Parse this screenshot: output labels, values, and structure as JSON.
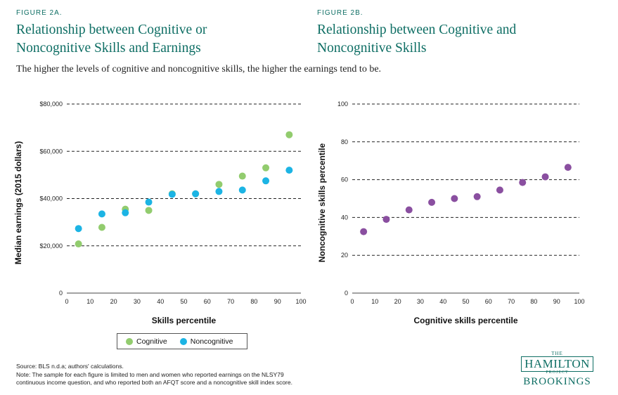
{
  "figure_a": {
    "label": "FIGURE 2A.",
    "title_line1": "Relationship between Cognitive or",
    "title_line2": "Noncognitive Skills and Earnings"
  },
  "figure_b": {
    "label": "FIGURE 2B.",
    "title_line1": "Relationship between Cognitive and",
    "title_line2": "Noncognitive Skills"
  },
  "subtitle": "The higher the levels of cognitive and noncognitive skills, the higher the earnings tend to be.",
  "legend": {
    "cognitive": "Cognitive",
    "noncognitive": "Noncognitive"
  },
  "footer": {
    "source": "Source:  BLS n.d.a; authors' calculations.",
    "note_line1": "Note: The sample for each figure is limited to men and women who reported earnings on the NLSY79",
    "note_line2": "continuous income question, and who reported both an AFQT score and a noncognitive skill index score."
  },
  "logo": {
    "the": "THE",
    "hamilton": "HAMILTON",
    "project": "PROJECT",
    "brookings": "BROOKINGS"
  },
  "colors": {
    "teal": "#0e6e64",
    "cognitive": "#92cc6e",
    "noncognitive": "#1cb4e4",
    "purple": "#8a4fa0"
  },
  "chart_data": [
    {
      "type": "scatter",
      "id": "2a",
      "xlabel": "Skills percentile",
      "ylabel": "Median earnings (2015 dollars)",
      "xlim": [
        0,
        100
      ],
      "ylim": [
        0,
        80000
      ],
      "x_ticks": [
        0,
        10,
        20,
        30,
        40,
        50,
        60,
        70,
        80,
        90,
        100
      ],
      "y_ticks": [
        0,
        20000,
        40000,
        60000,
        80000
      ],
      "y_tick_labels": [
        "0",
        "$20,000",
        "$40,000",
        "$60,000",
        "$80,000"
      ],
      "grid": "horizontal-dashed",
      "series": [
        {
          "name": "Cognitive",
          "x": [
            5,
            15,
            25,
            35,
            45,
            55,
            65,
            75,
            85,
            95
          ],
          "y": [
            20800,
            27800,
            35500,
            35000,
            42000,
            42000,
            46000,
            49500,
            53000,
            67000
          ]
        },
        {
          "name": "Noncognitive",
          "x": [
            5,
            15,
            25,
            35,
            45,
            55,
            65,
            75,
            85,
            95
          ],
          "y": [
            27300,
            33500,
            34000,
            38500,
            41800,
            42000,
            43000,
            43600,
            47500,
            52000
          ]
        }
      ]
    },
    {
      "type": "scatter",
      "id": "2b",
      "xlabel": "Cognitive skills percentile",
      "ylabel": "Noncognitive skills percentile",
      "xlim": [
        0,
        100
      ],
      "ylim": [
        0,
        100
      ],
      "x_ticks": [
        0,
        10,
        20,
        30,
        40,
        50,
        60,
        70,
        80,
        90,
        100
      ],
      "y_ticks": [
        0,
        20,
        40,
        60,
        80,
        100
      ],
      "y_tick_labels": [
        "0",
        "20",
        "40",
        "60",
        "80",
        "100"
      ],
      "grid": "horizontal-dashed",
      "series": [
        {
          "name": "Noncognitive",
          "x": [
            5,
            15,
            25,
            35,
            45,
            55,
            65,
            75,
            85,
            95
          ],
          "y": [
            32.5,
            39,
            44,
            48,
            50,
            51,
            54.5,
            58.5,
            61.5,
            66.5
          ]
        }
      ]
    }
  ]
}
